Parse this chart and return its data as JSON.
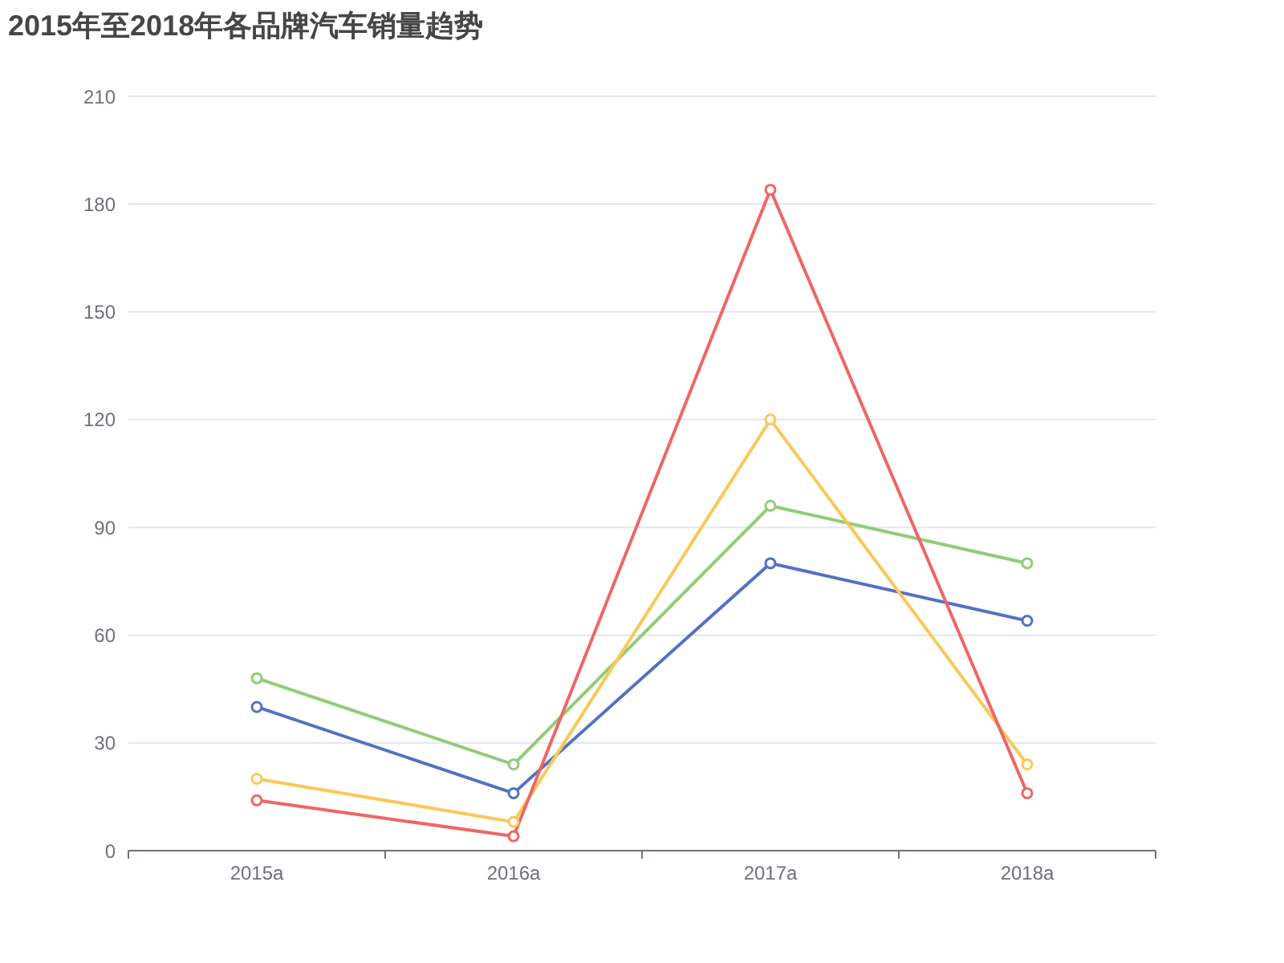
{
  "chart_data": {
    "type": "line",
    "title": "2015年至2018年各品牌汽车销量趋势",
    "categories": [
      "2015a",
      "2016a",
      "2017a",
      "2018a"
    ],
    "series": [
      {
        "color": "#5470c6",
        "values": [
          40,
          16,
          80,
          64
        ]
      },
      {
        "color": "#91cc75",
        "values": [
          48,
          24,
          96,
          80
        ]
      },
      {
        "color": "#fac858",
        "values": [
          20,
          8,
          120,
          24
        ]
      },
      {
        "color": "#ee6666",
        "values": [
          14,
          4,
          184,
          16
        ]
      }
    ],
    "ylim": [
      0,
      210
    ],
    "yticks": [
      0,
      30,
      60,
      90,
      120,
      150,
      180,
      210
    ],
    "grid": "y",
    "marker": "circle",
    "line_style": "solid"
  }
}
